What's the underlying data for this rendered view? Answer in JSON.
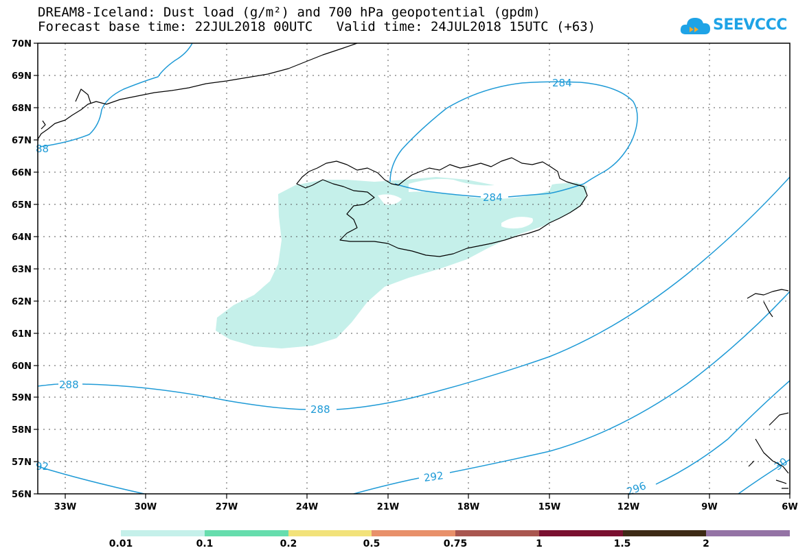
{
  "header": {
    "title_line1": "DREAM8-Iceland: Dust load (g/m²) and 700 hPa geopotential (gpdm)",
    "title_line2": "Forecast base time: 22JUL2018 00UTC   Valid time: 24JUL2018 15UTC (+63)"
  },
  "logo": {
    "text": "SEEVCCC",
    "icon": "cloud-icon"
  },
  "map": {
    "lat_labels": [
      "70N",
      "69N",
      "68N",
      "67N",
      "66N",
      "65N",
      "64N",
      "63N",
      "62N",
      "61N",
      "60N",
      "59N",
      "58N",
      "57N",
      "56N"
    ],
    "lon_labels": [
      "33W",
      "30W",
      "27W",
      "24W",
      "21W",
      "18W",
      "15W",
      "12W",
      "9W",
      "6W"
    ],
    "contour_labels": [
      "284",
      "284",
      "88",
      "288",
      "288",
      "92",
      "292",
      "296",
      "30"
    ],
    "colors": {
      "dust_fill": "#c5f0ea",
      "contour": "#1e9ad6",
      "coast": "#000000"
    }
  },
  "colorbar": {
    "colors": [
      "#c5f0ea",
      "#66ddad",
      "#f2e27a",
      "#e8906a",
      "#a9564f",
      "#7a1030",
      "#3d2a15",
      "#9473a5"
    ],
    "labels": [
      "0.01",
      "0.1",
      "0.2",
      "0.5",
      "0.75",
      "1",
      "1.5",
      "2"
    ]
  }
}
